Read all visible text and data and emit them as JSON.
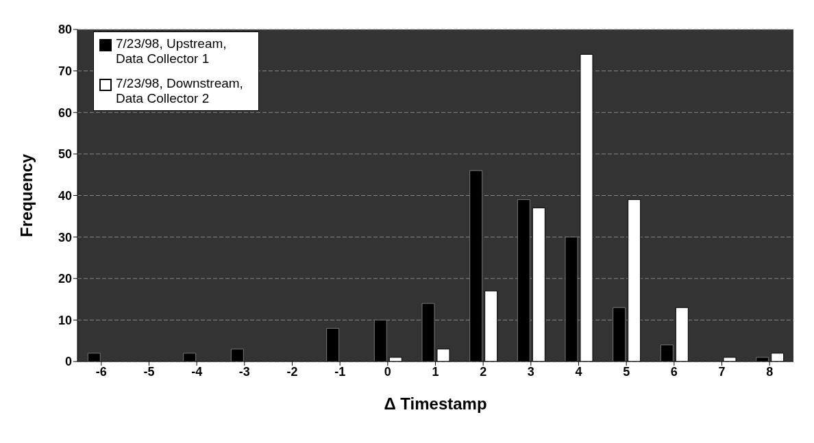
{
  "chart_data": {
    "type": "bar",
    "xlabel": "Δ Timestamp",
    "ylabel": "Frequency",
    "categories": [
      "-6",
      "-5",
      "-4",
      "-3",
      "-2",
      "-1",
      "0",
      "1",
      "2",
      "3",
      "4",
      "5",
      "6",
      "7",
      "8"
    ],
    "series": [
      {
        "name": "7/23/98, Upstream, Data Collector 1",
        "color": "#000000",
        "values": [
          2,
          0,
          2,
          3,
          0,
          8,
          10,
          14,
          46,
          39,
          30,
          13,
          4,
          0,
          1
        ]
      },
      {
        "name": "7/23/98, Downstream, Data Collector 2",
        "color": "#ffffff",
        "values": [
          0,
          0,
          0,
          0,
          0,
          0,
          1,
          3,
          17,
          37,
          74,
          39,
          13,
          1,
          2
        ]
      }
    ],
    "ylim": [
      0,
      80
    ],
    "yticks": [
      0,
      10,
      20,
      30,
      40,
      50,
      60,
      70,
      80
    ],
    "grid": "y",
    "legend": "top left"
  }
}
